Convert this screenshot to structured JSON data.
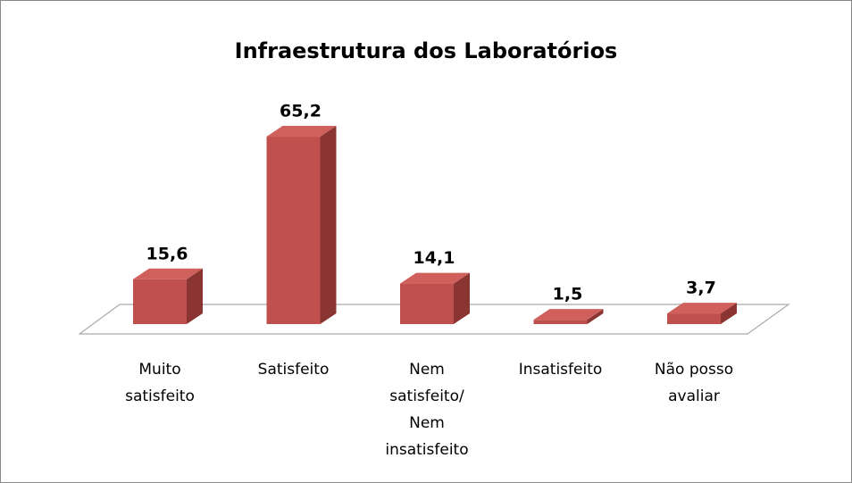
{
  "chart_data": {
    "type": "bar3d",
    "title": "Infraestrutura dos Laboratórios",
    "categories": [
      "Muito satisfeito",
      "Satisfeito",
      "Nem satisfeito/ Nem insatisfeito",
      "Insatisfeito",
      "Não posso avaliar"
    ],
    "values": [
      15.6,
      65.2,
      14.1,
      1.5,
      3.7
    ],
    "value_labels": [
      "15,6",
      "65,2",
      "14,1",
      "1,5",
      "3,7"
    ],
    "color": "#c0504d"
  }
}
